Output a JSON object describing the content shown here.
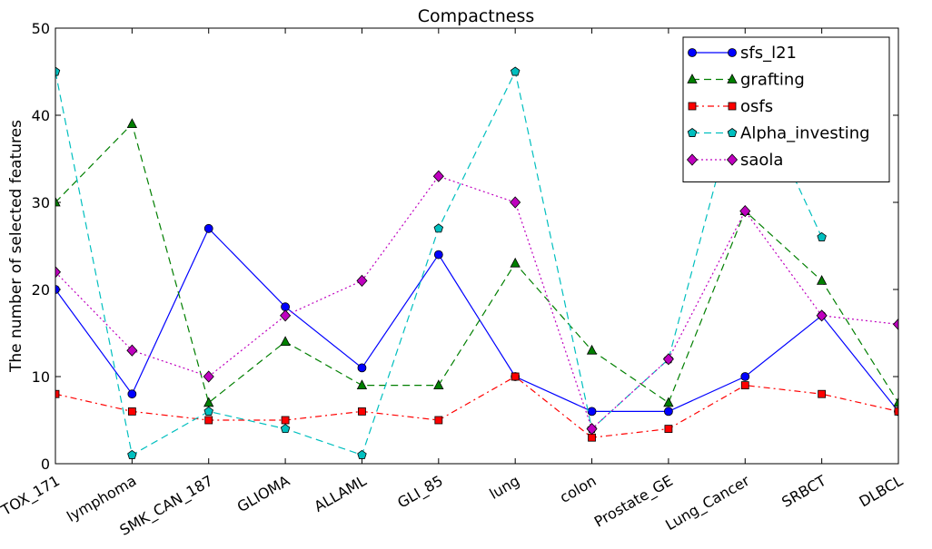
{
  "chart_data": {
    "type": "line",
    "title": "Compactness",
    "xlabel": "",
    "ylabel": "The number of selected features",
    "categories": [
      "TOX_171",
      "lymphoma",
      "SMK_CAN_187",
      "GLIOMA",
      "ALLAML",
      "GLI_85",
      "lung",
      "colon",
      "Prostate_GE",
      "Lung_Cancer",
      "SRBCT",
      "DLBCL"
    ],
    "ylim": [
      0,
      50
    ],
    "yticks": [
      0,
      10,
      20,
      30,
      40,
      50
    ],
    "grid": false,
    "legend_position": "top-right",
    "series": [
      {
        "name": "sfs_l21",
        "color": "#0000ff",
        "marker": "circle",
        "dash": "solid",
        "values": [
          20,
          8,
          27,
          18,
          11,
          24,
          10,
          6,
          6,
          10,
          17,
          6
        ]
      },
      {
        "name": "grafting",
        "color": "#007f00",
        "marker": "triangle",
        "dash": "dashed",
        "values": [
          30,
          39,
          7,
          14,
          9,
          9,
          23,
          13,
          7,
          29,
          21,
          7
        ]
      },
      {
        "name": "osfs",
        "color": "#ff0000",
        "marker": "square",
        "dash": "dashdot",
        "values": [
          8,
          6,
          5,
          5,
          6,
          5,
          10,
          3,
          4,
          9,
          8,
          6
        ]
      },
      {
        "name": "Alpha_investing",
        "color": "#00bfbf",
        "marker": "pentagon",
        "dash": "dashed",
        "values": [
          45,
          1,
          6,
          4,
          1,
          27,
          45,
          4,
          12,
          45,
          26,
          null
        ]
      },
      {
        "name": "saola",
        "color": "#bf00bf",
        "marker": "diamond",
        "dash": "dotted",
        "values": [
          22,
          13,
          10,
          17,
          21,
          33,
          30,
          4,
          12,
          29,
          17,
          16
        ]
      }
    ]
  }
}
